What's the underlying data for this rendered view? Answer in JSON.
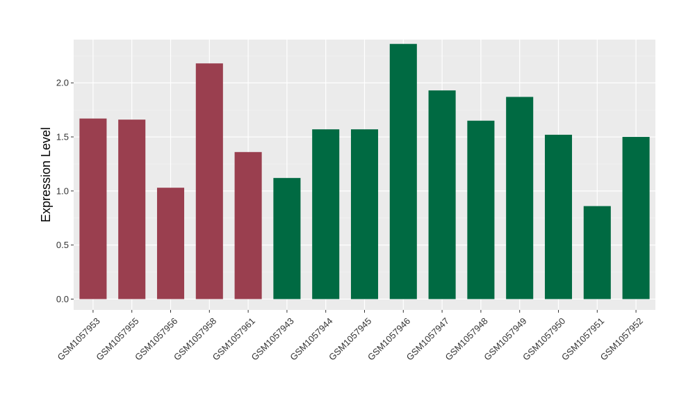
{
  "chart_data": {
    "type": "bar",
    "title": "",
    "xlabel": "",
    "ylabel": "Expression Level",
    "ylim": [
      -0.1,
      2.4
    ],
    "yticks": [
      0.0,
      0.5,
      1.0,
      1.5,
      2.0
    ],
    "ytick_labels": [
      "0.0",
      "0.5",
      "1.0",
      "1.5",
      "2.0"
    ],
    "grid": true,
    "legend": "none",
    "colors": {
      "panel_background": "#EBEBEB",
      "grid_major": "#FFFFFF",
      "grid_minor": "#F2F2F2",
      "group_a": "#9A3F4F",
      "group_b": "#006A42"
    },
    "categories": [
      "GSM1057953",
      "GSM1057955",
      "GSM1057956",
      "GSM1057958",
      "GSM1057961",
      "GSM1057943",
      "GSM1057944",
      "GSM1057945",
      "GSM1057946",
      "GSM1057947",
      "GSM1057948",
      "GSM1057949",
      "GSM1057950",
      "GSM1057951",
      "GSM1057952"
    ],
    "values": [
      1.67,
      1.66,
      1.03,
      2.18,
      1.36,
      1.12,
      1.57,
      1.57,
      2.36,
      1.93,
      1.65,
      1.87,
      1.52,
      0.86,
      1.5
    ],
    "bar_groups": [
      "group_a",
      "group_a",
      "group_a",
      "group_a",
      "group_a",
      "group_b",
      "group_b",
      "group_b",
      "group_b",
      "group_b",
      "group_b",
      "group_b",
      "group_b",
      "group_b",
      "group_b"
    ]
  }
}
